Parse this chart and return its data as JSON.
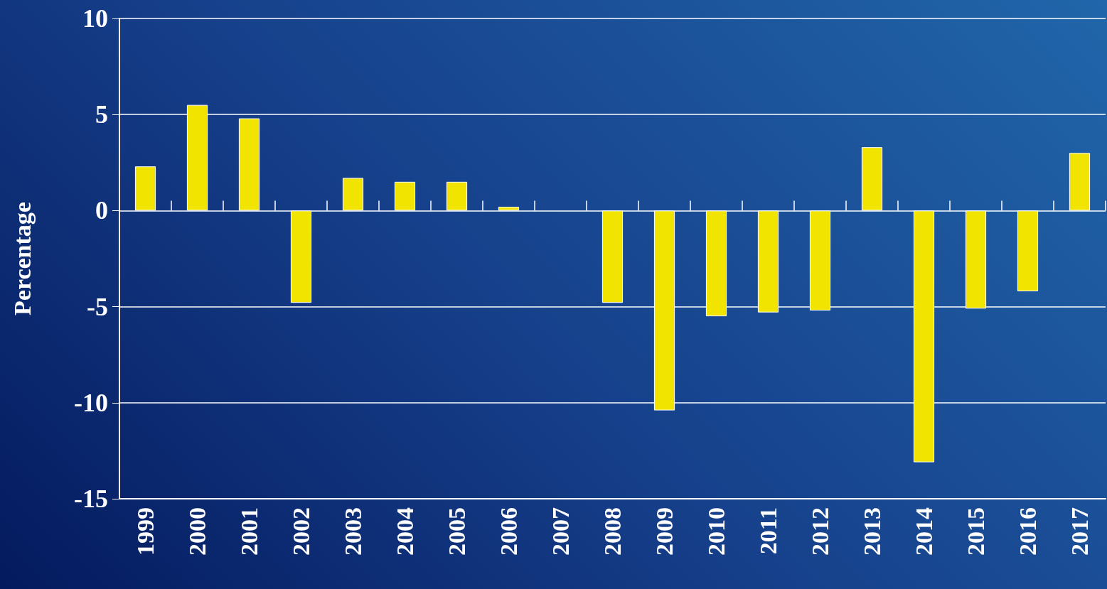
{
  "chart_data": {
    "type": "bar",
    "ylabel": "Percentage",
    "categories": [
      "1999",
      "2000",
      "2001",
      "2002",
      "2003",
      "2004",
      "2005",
      "2006",
      "2007",
      "2008",
      "2009",
      "2010",
      "2011",
      "2012",
      "2013",
      "2014",
      "2015",
      "2016",
      "2017"
    ],
    "values": [
      2.3,
      5.5,
      4.8,
      -4.8,
      1.7,
      1.5,
      1.5,
      0.2,
      null,
      -4.8,
      -10.4,
      -5.5,
      -5.3,
      -5.2,
      3.3,
      -13.1,
      -5.1,
      -4.2,
      3.0
    ],
    "color": "#f0e400",
    "ylim": [
      -15,
      10
    ],
    "yticks": [
      -15,
      -10,
      -5,
      0,
      5,
      10
    ],
    "grid": "y"
  }
}
